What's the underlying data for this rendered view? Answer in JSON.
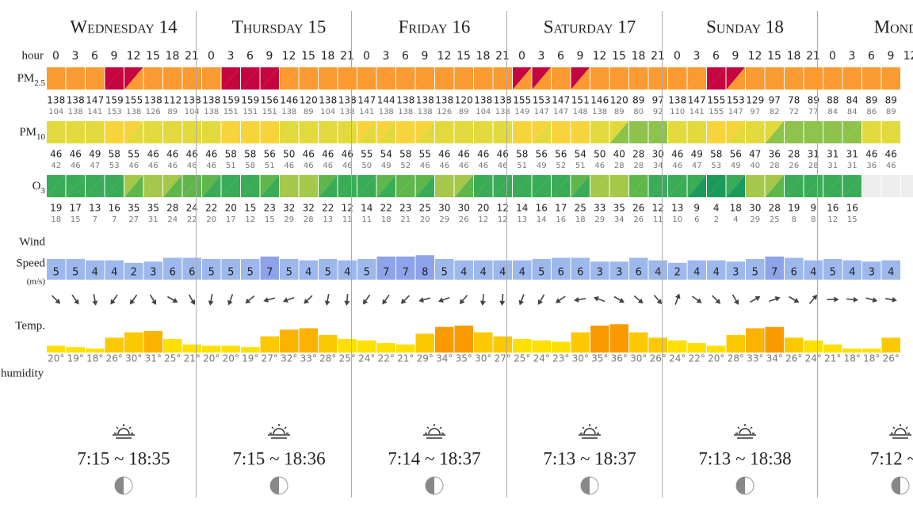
{
  "labels": {
    "hour": "hour",
    "pm25": {
      "main": "PM",
      "sub": "2.5"
    },
    "pm10": {
      "main": "PM",
      "sub": "10"
    },
    "o3": {
      "main": "O",
      "sub": "3"
    },
    "wind": "Wind",
    "speed": "Speed",
    "unit": "(m/s)",
    "temp": "Temp.",
    "humidity": "humidity"
  },
  "days": [
    {
      "name": "Wednesday 14",
      "hours": [
        0,
        3,
        6,
        9,
        12,
        15,
        18,
        21
      ],
      "pm25": {
        "values": [
          138,
          138,
          147,
          159,
          155,
          138,
          112,
          138
        ],
        "sub": [
          104,
          138,
          141,
          153,
          138,
          126,
          89,
          104
        ]
      },
      "pm10": {
        "values": [
          46,
          46,
          49,
          58,
          55,
          46,
          46,
          46
        ],
        "sub": [
          42,
          46,
          47,
          53,
          46,
          46,
          46,
          46
        ]
      },
      "o3": {
        "values": [
          19,
          17,
          13,
          16,
          35,
          35,
          28,
          24
        ],
        "sub": [
          18,
          15,
          7,
          7,
          27,
          31,
          24,
          22
        ]
      },
      "wind_speed": [
        5,
        5,
        4,
        4,
        2,
        3,
        6,
        6
      ],
      "wind_dir": [
        135,
        145,
        170,
        215,
        215,
        150,
        120,
        150
      ],
      "temp": {
        "values": [
          20,
          19,
          18,
          26,
          30,
          31,
          25,
          21
        ],
        "value_labels": [
          "20°",
          "19°",
          "18°",
          "26°",
          "30°",
          "31°",
          "25°",
          "21°"
        ]
      },
      "sun": "7:15 ~ 18:35"
    },
    {
      "name": "Thursday 15",
      "hours": [
        0,
        3,
        6,
        9,
        12,
        15,
        18,
        21
      ],
      "pm25": {
        "values": [
          138,
          159,
          159,
          156,
          146,
          120,
          138,
          138
        ],
        "sub": [
          138,
          151,
          151,
          151,
          138,
          89,
          104,
          138
        ]
      },
      "pm10": {
        "values": [
          46,
          58,
          58,
          56,
          50,
          46,
          46,
          46
        ],
        "sub": [
          46,
          51,
          58,
          51,
          46,
          46,
          46,
          46
        ]
      },
      "o3": {
        "values": [
          22,
          20,
          15,
          23,
          32,
          32,
          22,
          12
        ],
        "sub": [
          20,
          17,
          12,
          15,
          29,
          28,
          13,
          11
        ]
      },
      "wind_speed": [
        5,
        5,
        5,
        7,
        5,
        4,
        5,
        4
      ],
      "wind_dir": [
        190,
        200,
        230,
        255,
        250,
        225,
        190,
        185
      ],
      "temp": {
        "values": [
          20,
          20,
          19,
          27,
          32,
          33,
          28,
          25
        ],
        "value_labels": [
          "20°",
          "20°",
          "19°",
          "27°",
          "32°",
          "33°",
          "28°",
          "25°"
        ]
      },
      "sun": "7:15 ~ 18:36"
    },
    {
      "name": "Friday 16",
      "hours": [
        0,
        3,
        6,
        9,
        12,
        15,
        18,
        21
      ],
      "pm25": {
        "values": [
          147,
          144,
          138,
          138,
          138,
          120,
          138,
          138
        ],
        "sub": [
          141,
          138,
          138,
          138,
          126,
          89,
          104,
          138
        ]
      },
      "pm10": {
        "values": [
          55,
          54,
          58,
          55,
          46,
          46,
          46,
          46
        ],
        "sub": [
          50,
          49,
          52,
          46,
          46,
          46,
          46,
          46
        ]
      },
      "o3": {
        "values": [
          14,
          22,
          23,
          25,
          30,
          30,
          20,
          12
        ],
        "sub": [
          11,
          18,
          21,
          20,
          29,
          26,
          12,
          12
        ]
      },
      "wind_speed": [
        5,
        7,
        7,
        8,
        5,
        4,
        4,
        4
      ],
      "wind_dir": [
        215,
        215,
        225,
        255,
        250,
        220,
        185,
        185
      ],
      "temp": {
        "values": [
          24,
          22,
          21,
          29,
          34,
          35,
          30,
          27
        ],
        "value_labels": [
          "24°",
          "22°",
          "21°",
          "29°",
          "34°",
          "35°",
          "30°",
          "27°"
        ]
      },
      "sun": "7:14 ~ 18:37"
    },
    {
      "name": "Saturday 17",
      "hours": [
        0,
        3,
        6,
        9,
        12,
        15,
        18,
        21
      ],
      "pm25": {
        "values": [
          155,
          153,
          147,
          151,
          146,
          120,
          89,
          97
        ],
        "sub": [
          149,
          147,
          147,
          148,
          138,
          89,
          80,
          92
        ]
      },
      "pm10": {
        "values": [
          58,
          56,
          56,
          54,
          50,
          40,
          28,
          30
        ],
        "sub": [
          51,
          49,
          52,
          51,
          46,
          28,
          28,
          34
        ]
      },
      "o3": {
        "values": [
          14,
          16,
          17,
          25,
          33,
          35,
          26,
          12
        ],
        "sub": [
          13,
          14,
          16,
          18,
          29,
          34,
          26,
          11
        ]
      },
      "wind_speed": [
        4,
        5,
        6,
        6,
        3,
        3,
        6,
        4
      ],
      "wind_dir": [
        200,
        210,
        235,
        260,
        290,
        120,
        130,
        140
      ],
      "temp": {
        "values": [
          25,
          24,
          23,
          30,
          35,
          36,
          30,
          26
        ],
        "value_labels": [
          "25°",
          "24°",
          "23°",
          "30°",
          "35°",
          "36°",
          "30°",
          "26°"
        ]
      },
      "sun": "7:13 ~ 18:37"
    },
    {
      "name": "Sunday 18",
      "hours": [
        0,
        3,
        6,
        9,
        12,
        15,
        18,
        21
      ],
      "pm25": {
        "values": [
          138,
          147,
          155,
          153,
          129,
          97,
          78,
          89
        ],
        "sub": [
          110,
          141,
          155,
          147,
          97,
          82,
          72,
          77
        ]
      },
      "pm10": {
        "values": [
          46,
          49,
          58,
          56,
          47,
          36,
          28,
          31
        ],
        "sub": [
          46,
          47,
          53,
          49,
          40,
          28,
          26,
          28
        ]
      },
      "o3": {
        "values": [
          13,
          9,
          4,
          18,
          30,
          28,
          19,
          9
        ],
        "sub": [
          10,
          6,
          2,
          4,
          29,
          25,
          8,
          8
        ]
      },
      "wind_speed": [
        2,
        4,
        4,
        3,
        5,
        7,
        6,
        4
      ],
      "wind_dir": [
        20,
        125,
        135,
        150,
        60,
        70,
        120,
        40
      ],
      "temp": {
        "values": [
          24,
          22,
          20,
          28,
          33,
          34,
          26,
          24
        ],
        "value_labels": [
          "24°",
          "22°",
          "20°",
          "28°",
          "33°",
          "34°",
          "26°",
          "24°"
        ]
      },
      "sun": "7:13 ~ 18:38"
    },
    {
      "name": "Monda",
      "hours": [
        0,
        3,
        6,
        9,
        12
      ],
      "pm25": {
        "values": [
          88,
          84,
          89,
          89
        ],
        "sub": [
          84,
          84,
          86,
          89
        ]
      },
      "pm10": {
        "values": [
          31,
          31,
          46,
          46
        ],
        "sub": [
          31,
          31,
          36,
          46
        ]
      },
      "o3": {
        "values": [
          16,
          16
        ],
        "sub": [
          12,
          15
        ]
      },
      "wind_speed": [
        5,
        4,
        3,
        4
      ],
      "wind_dir": [
        90,
        95,
        105,
        100
      ],
      "temp": {
        "values": [
          21,
          18,
          18,
          26
        ],
        "value_labels": [
          "21°",
          "18°",
          "18°",
          "26°"
        ]
      },
      "sun": "7:12 ~ 1"
    }
  ]
}
